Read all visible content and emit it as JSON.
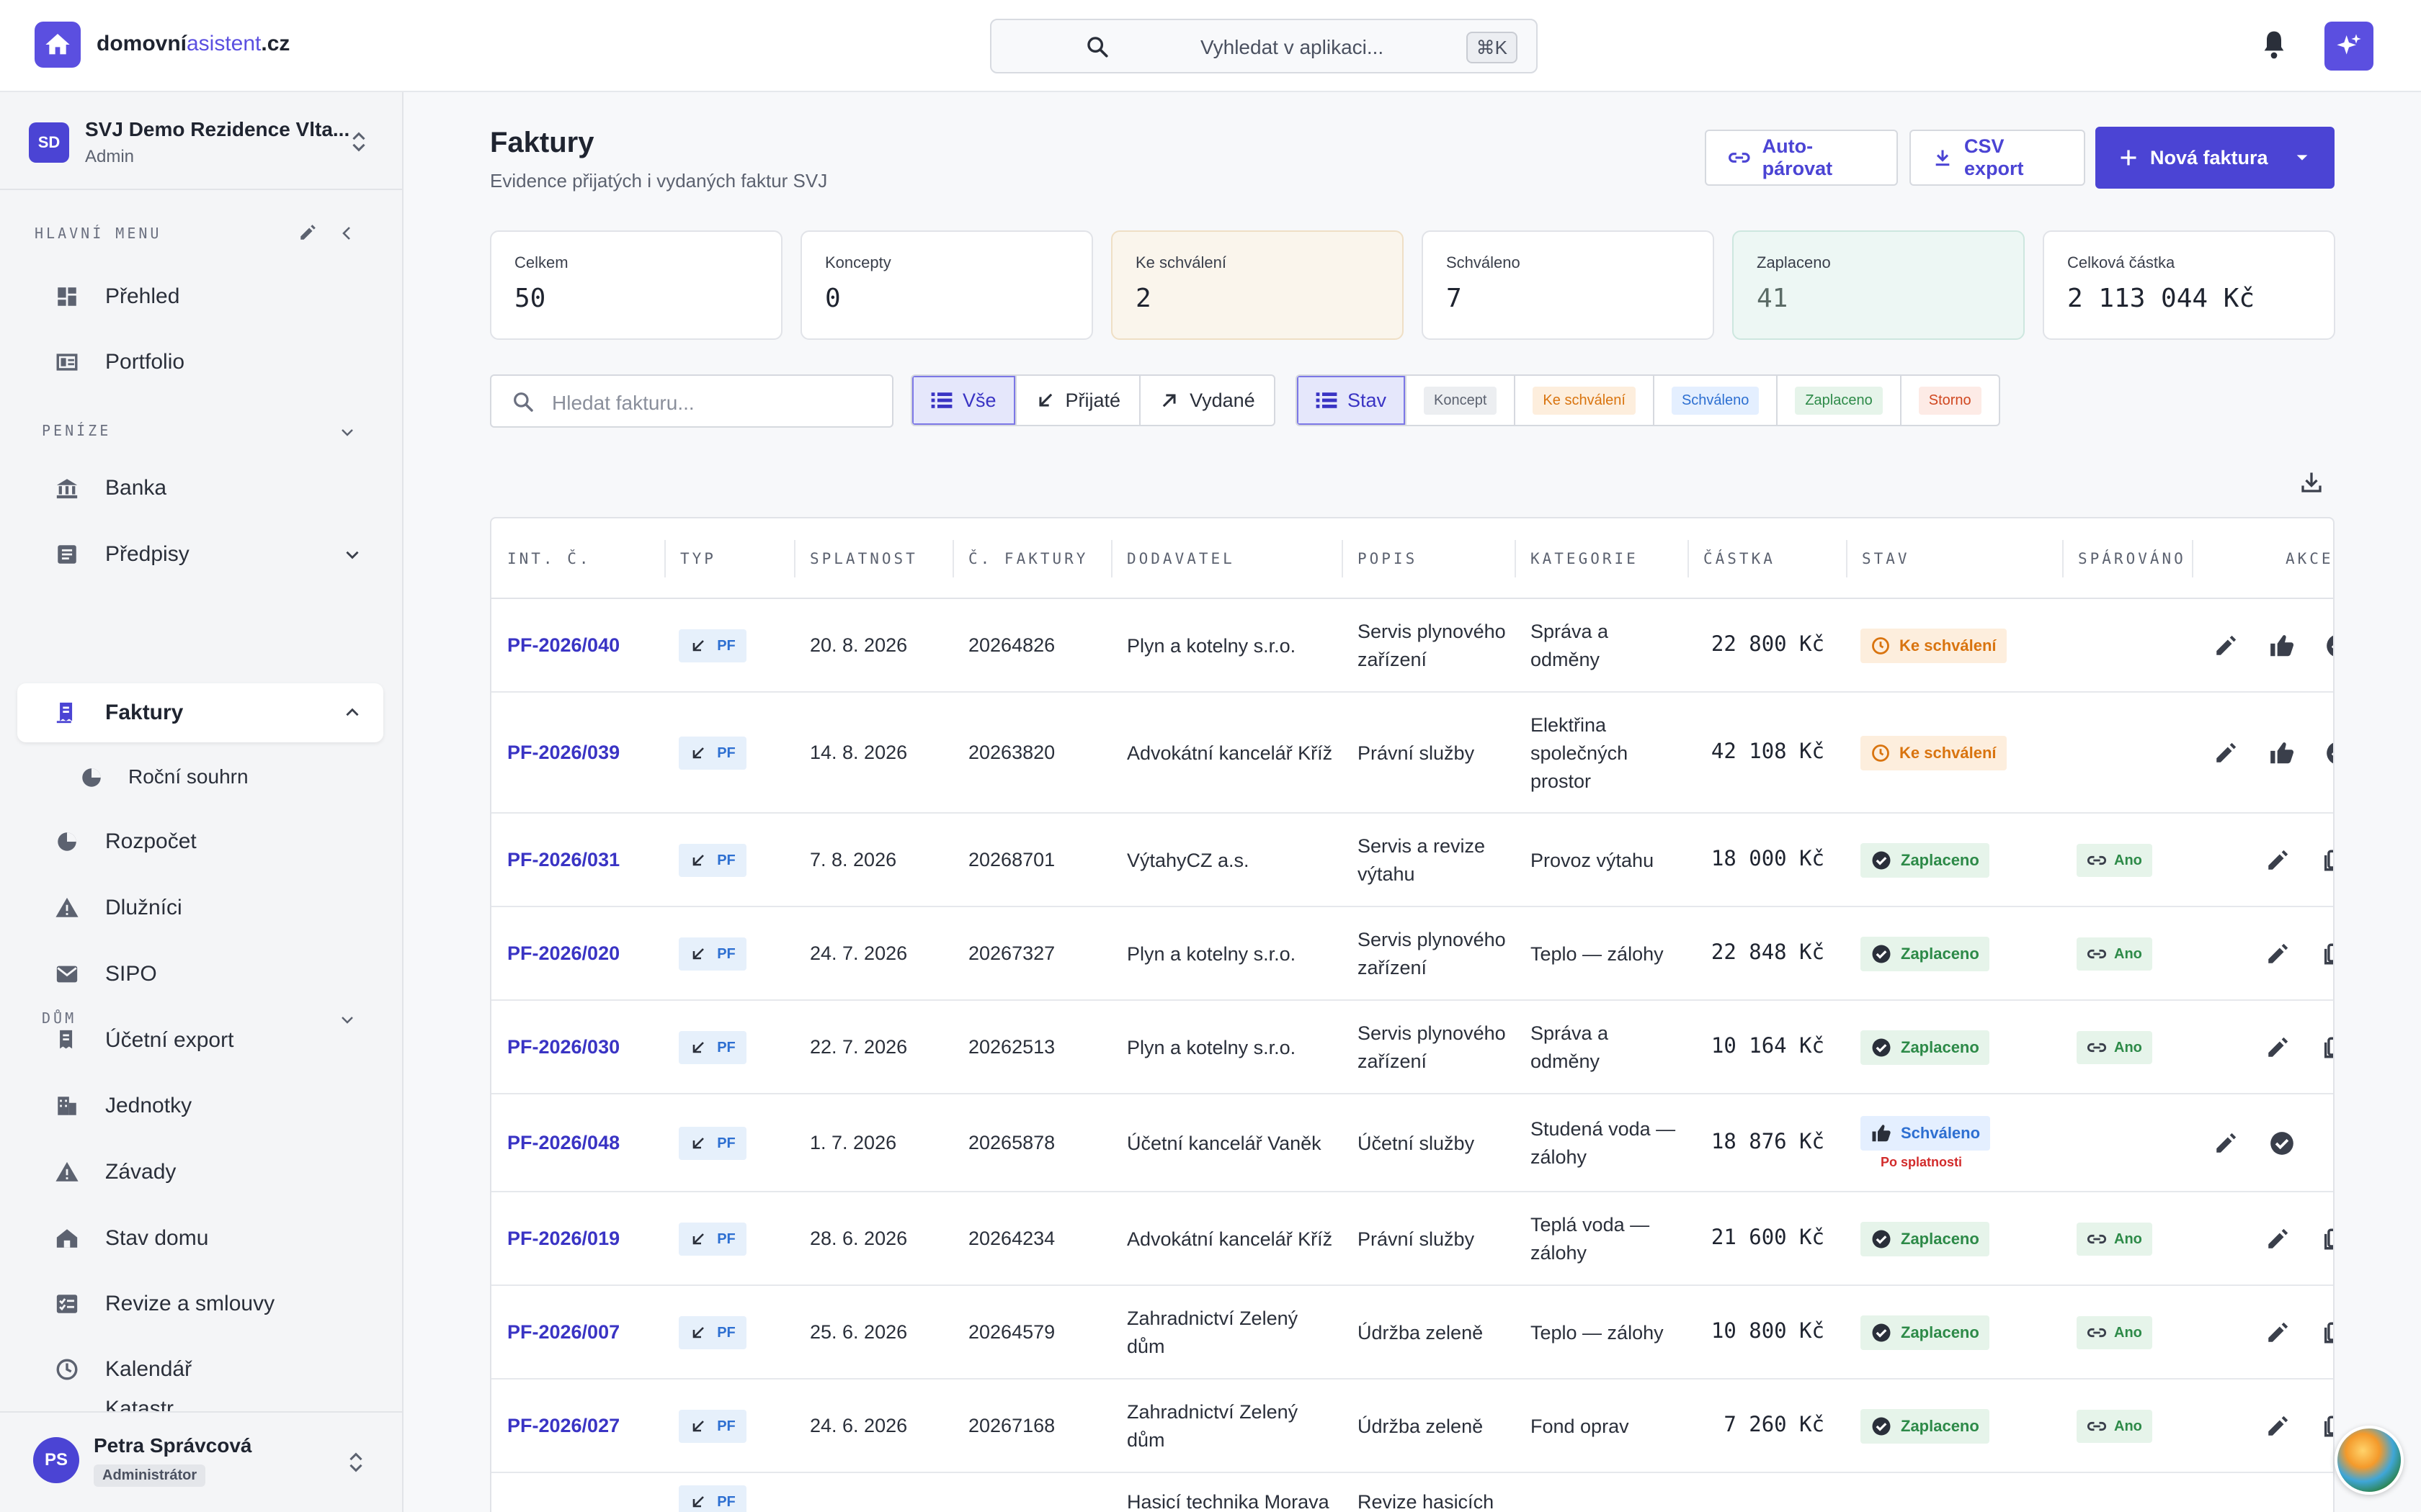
{
  "brand": {
    "name_main": "domovní",
    "name_accent": "asistent",
    "name_suffix": ".cz"
  },
  "search": {
    "placeholder": "Vyhledat v aplikaci...",
    "shortcut": "⌘K"
  },
  "org": {
    "initials": "SD",
    "name": "SVJ Demo Rezidence Vlta...",
    "role": "Admin"
  },
  "sidebar": {
    "sections": {
      "main": "HLAVNÍ MENU",
      "money": "PENÍZE",
      "house": "DŮM"
    },
    "items": [
      {
        "label": "Přehled"
      },
      {
        "label": "Portfolio"
      },
      {
        "label": "Banka"
      },
      {
        "label": "Předpisy"
      },
      {
        "label": "Faktury"
      },
      {
        "label": "Roční souhrn"
      },
      {
        "label": "Rozpočet"
      },
      {
        "label": "Dlužníci"
      },
      {
        "label": "SIPO"
      },
      {
        "label": "Účetní export"
      },
      {
        "label": "Jednotky"
      },
      {
        "label": "Závady"
      },
      {
        "label": "Stav domu"
      },
      {
        "label": "Revize a smlouvy"
      },
      {
        "label": "Kalendář"
      },
      {
        "label": "Katastr"
      }
    ]
  },
  "user": {
    "initials": "PS",
    "name": "Petra Správcová",
    "role": "Administrátor"
  },
  "page": {
    "title": "Faktury",
    "subtitle": "Evidence přijatých i vydaných faktur SVJ"
  },
  "actions": {
    "auto_pair": "Auto-párovat",
    "csv_export": "CSV export",
    "new_invoice": "Nová faktura"
  },
  "stats": [
    {
      "label": "Celkem",
      "value": "50"
    },
    {
      "label": "Koncepty",
      "value": "0"
    },
    {
      "label": "Ke schválení",
      "value": "2"
    },
    {
      "label": "Schváleno",
      "value": "7"
    },
    {
      "label": "Zaplaceno",
      "value": "41"
    },
    {
      "label": "Celková částka",
      "value": "2 113 044 Kč"
    }
  ],
  "filters": {
    "search_placeholder": "Hledat fakturu...",
    "types": [
      "Vše",
      "Přijaté",
      "Vydané"
    ],
    "status_label": "Stav",
    "statuses": [
      "Koncept",
      "Ke schválení",
      "Schváleno",
      "Zaplaceno",
      "Storno"
    ]
  },
  "table": {
    "headers": [
      "INT. Č.",
      "TYP",
      "SPLATNOST",
      "Č. FAKTURY",
      "DODAVATEL",
      "POPIS",
      "KATEGORIE",
      "ČÁSTKA",
      "STAV",
      "SPÁROVÁNO",
      "AKCE"
    ],
    "type_chip": "PF",
    "overdue": "Po splatnosti",
    "rows": [
      {
        "id": "PF-2026/040",
        "due": "20. 8. 2026",
        "no": "20264826",
        "supplier": [
          "Plyn a kotelny s.r.o."
        ],
        "desc": [
          "Servis plynového",
          "zařízení"
        ],
        "cat": [
          "Správa a",
          "odměny"
        ],
        "amount": "22 800 Kč",
        "status": "Ke schválení",
        "kind": "pending",
        "paired": ""
      },
      {
        "id": "PF-2026/039",
        "due": "14. 8. 2026",
        "no": "20263820",
        "supplier": [
          "Advokátní kancelář Kříž"
        ],
        "desc": [
          "Právní služby"
        ],
        "cat": [
          "Elektřina",
          "společných",
          "prostor"
        ],
        "amount": "42 108 Kč",
        "status": "Ke schválení",
        "kind": "pending",
        "paired": ""
      },
      {
        "id": "PF-2026/031",
        "due": "7. 8. 2026",
        "no": "20268701",
        "supplier": [
          "VýtahyCZ a.s."
        ],
        "desc": [
          "Servis a revize",
          "výtahu"
        ],
        "cat": [
          "Provoz výtahu"
        ],
        "amount": "18 000 Kč",
        "status": "Zaplaceno",
        "kind": "paid",
        "paired": "Ano"
      },
      {
        "id": "PF-2026/020",
        "due": "24. 7. 2026",
        "no": "20267327",
        "supplier": [
          "Plyn a kotelny s.r.o."
        ],
        "desc": [
          "Servis plynového",
          "zařízení"
        ],
        "cat": [
          "Teplo — zálohy"
        ],
        "amount": "22 848 Kč",
        "status": "Zaplaceno",
        "kind": "paid",
        "paired": "Ano"
      },
      {
        "id": "PF-2026/030",
        "due": "22. 7. 2026",
        "no": "20262513",
        "supplier": [
          "Plyn a kotelny s.r.o."
        ],
        "desc": [
          "Servis plynového",
          "zařízení"
        ],
        "cat": [
          "Správa a",
          "odměny"
        ],
        "amount": "10 164 Kč",
        "status": "Zaplaceno",
        "kind": "paid",
        "paired": "Ano"
      },
      {
        "id": "PF-2026/048",
        "due": "1. 7. 2026",
        "no": "20265878",
        "supplier": [
          "Účetní kancelář Vaněk"
        ],
        "desc": [
          "Účetní služby"
        ],
        "cat": [
          "Studená voda —",
          "zálohy"
        ],
        "amount": "18 876 Kč",
        "status": "Schváleno",
        "kind": "approved",
        "paired": ""
      },
      {
        "id": "PF-2026/019",
        "due": "28. 6. 2026",
        "no": "20264234",
        "supplier": [
          "Advokátní kancelář Kříž"
        ],
        "desc": [
          "Právní služby"
        ],
        "cat": [
          "Teplá voda —",
          "zálohy"
        ],
        "amount": "21 600 Kč",
        "status": "Zaplaceno",
        "kind": "paid",
        "paired": "Ano"
      },
      {
        "id": "PF-2026/007",
        "due": "25. 6. 2026",
        "no": "20264579",
        "supplier": [
          "Zahradnictví Zelený",
          "dům"
        ],
        "desc": [
          "Údržba zeleně"
        ],
        "cat": [
          "Teplo — zálohy"
        ],
        "amount": "10 800 Kč",
        "status": "Zaplaceno",
        "kind": "paid",
        "paired": "Ano"
      },
      {
        "id": "PF-2026/027",
        "due": "24. 6. 2026",
        "no": "20267168",
        "supplier": [
          "Zahradnictví Zelený",
          "dům"
        ],
        "desc": [
          "Údržba zeleně"
        ],
        "cat": [
          "Fond oprav"
        ],
        "amount": "7 260 Kč",
        "status": "Zaplaceno",
        "kind": "paid",
        "paired": "Ano"
      },
      {
        "id": "",
        "due": "",
        "no": "",
        "supplier": [
          "Hasicí technika Morava"
        ],
        "desc": [
          "Revize hasicích"
        ],
        "cat": [
          ""
        ],
        "amount": "",
        "status": "",
        "kind": "partial",
        "paired": ""
      }
    ]
  }
}
